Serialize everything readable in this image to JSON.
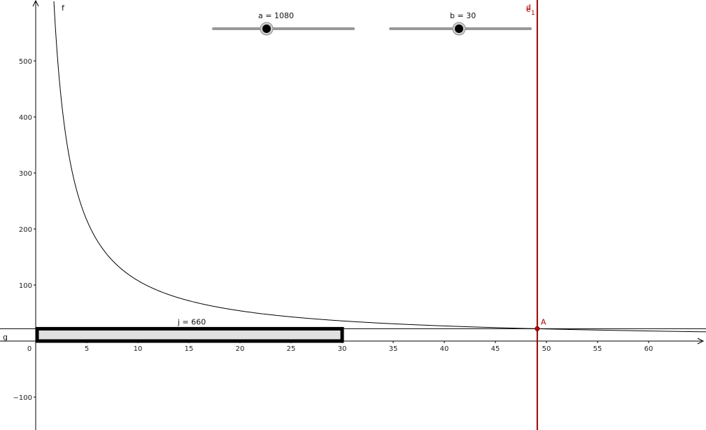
{
  "sliders": [
    {
      "name": "a",
      "label": "a = 1080",
      "value": 1080,
      "fraction": 0.38
    },
    {
      "name": "b",
      "label": "b = 30",
      "value": 30,
      "fraction": 0.49
    }
  ],
  "function": {
    "label": "f",
    "expression_param": 1080
  },
  "line_g": {
    "label": "g",
    "y_value": 22
  },
  "vertical_line": {
    "label_main": "d",
    "label_overlap": "e",
    "label_sub": "1",
    "x_value": 49.1,
    "color": "#990000"
  },
  "point_A": {
    "label": "A",
    "x": 49.1,
    "y": 22,
    "color": "#cc0000"
  },
  "rectangle": {
    "label": "j = 660",
    "x_from": 0,
    "x_to": 30,
    "y_from": 0,
    "y_to": 22,
    "fill": "#e0e0e0"
  },
  "axes": {
    "x_ticks": [
      "0",
      "5",
      "10",
      "15",
      "20",
      "25",
      "30",
      "35",
      "40",
      "45",
      "50",
      "55",
      "60"
    ],
    "y_ticks": [
      "500",
      "400",
      "300",
      "200",
      "100",
      "−100"
    ]
  }
}
